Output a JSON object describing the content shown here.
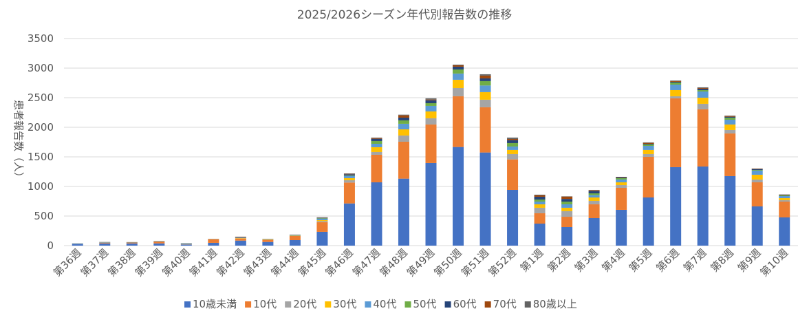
{
  "chart_data": {
    "type": "bar",
    "stacked": true,
    "title": "2025/2026シーズン年代別報告数の推移",
    "xlabel": "",
    "ylabel": "患者報告数（人）",
    "ylim": [
      0,
      3500
    ],
    "yticks": [
      0,
      500,
      1000,
      1500,
      2000,
      2500,
      3000,
      3500
    ],
    "grid": true,
    "legend_position": "bottom",
    "categories": [
      "第36週",
      "第37週",
      "第38週",
      "第39週",
      "第40週",
      "第41週",
      "第42週",
      "第43週",
      "第44週",
      "第45週",
      "第46週",
      "第47週",
      "第48週",
      "第49週",
      "第50週",
      "第51週",
      "第52週",
      "第1週",
      "第2週",
      "第3週",
      "第4週",
      "第5週",
      "第6週",
      "第7週",
      "第8週",
      "第9週",
      "第10週"
    ],
    "series": [
      {
        "name": "10歳未満",
        "color": "#4472C4",
        "values": [
          27,
          38,
          38,
          38,
          19,
          47,
          85,
          62,
          93,
          233,
          713,
          1070,
          1132,
          1396,
          1667,
          1574,
          942,
          372,
          314,
          465,
          605,
          814,
          1326,
          1337,
          1175,
          663,
          477
        ]
      },
      {
        "name": "10代",
        "color": "#ED7D31",
        "values": [
          2,
          9,
          9,
          28,
          3,
          62,
          35,
          35,
          70,
          162,
          353,
          465,
          624,
          651,
          857,
          764,
          515,
          175,
          174,
          233,
          372,
          686,
          1163,
          966,
          721,
          407,
          267
        ]
      },
      {
        "name": "20代",
        "color": "#A5A5A5",
        "values": [
          1,
          2,
          1,
          2,
          1,
          2,
          3,
          3,
          2,
          20,
          39,
          47,
          105,
          105,
          139,
          128,
          90,
          93,
          94,
          58,
          46,
          47,
          35,
          93,
          58,
          47,
          24
        ]
      },
      {
        "name": "30代",
        "color": "#FFC000",
        "values": [
          1,
          2,
          1,
          2,
          2,
          1,
          5,
          5,
          3,
          15,
          35,
          81,
          104,
          116,
          140,
          128,
          70,
          58,
          58,
          58,
          47,
          70,
          104,
          104,
          93,
          81,
          34
        ]
      },
      {
        "name": "40代",
        "color": "#5B9BD5",
        "values": [
          8,
          3,
          2,
          3,
          4,
          1,
          5,
          3,
          3,
          24,
          38,
          58,
          94,
          93,
          105,
          112,
          58,
          46,
          58,
          39,
          47,
          69,
          93,
          105,
          81,
          70,
          35
        ]
      },
      {
        "name": "50代",
        "color": "#70AD47",
        "values": [
          1,
          1,
          1,
          1,
          4,
          1,
          2,
          2,
          5,
          8,
          8,
          47,
          58,
          46,
          69,
          74,
          58,
          35,
          46,
          31,
          23,
          24,
          35,
          23,
          35,
          11,
          12
        ]
      },
      {
        "name": "60代",
        "color": "#264478",
        "values": [
          1,
          5,
          2,
          4,
          6,
          0,
          4,
          2,
          6,
          7,
          20,
          38,
          46,
          50,
          47,
          46,
          50,
          47,
          45,
          38,
          11,
          11,
          12,
          24,
          15,
          12,
          6
        ]
      },
      {
        "name": "70代",
        "color": "#9E480E",
        "values": [
          0,
          1,
          5,
          1,
          1,
          0,
          8,
          2,
          2,
          4,
          7,
          12,
          39,
          12,
          23,
          47,
          20,
          23,
          40,
          12,
          6,
          15,
          12,
          11,
          12,
          6,
          6
        ]
      },
      {
        "name": "80歳以上",
        "color": "#636363",
        "values": [
          0,
          1,
          1,
          1,
          1,
          2,
          4,
          2,
          2,
          7,
          8,
          8,
          11,
          20,
          12,
          23,
          23,
          12,
          5,
          8,
          6,
          9,
          11,
          12,
          8,
          6,
          4
        ]
      }
    ]
  }
}
